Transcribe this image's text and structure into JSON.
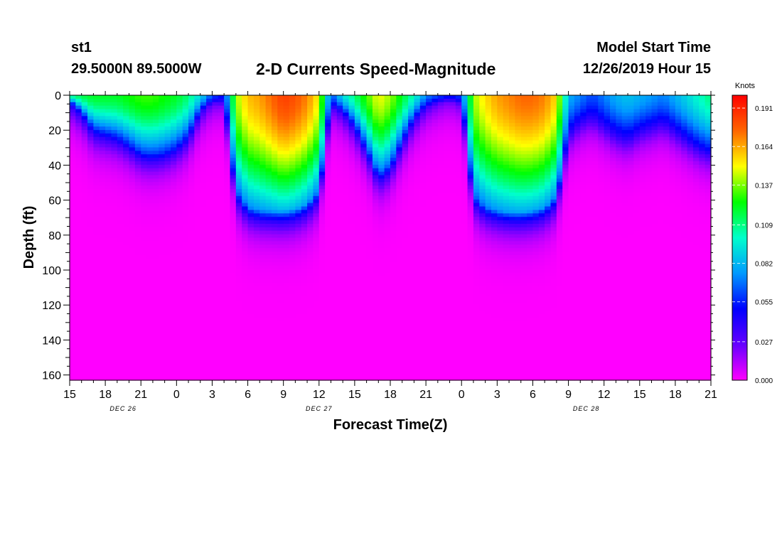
{
  "header": {
    "station": "st1",
    "coordinates": "29.5000N 89.5000W",
    "title": "2-D Currents Speed-Magnitude",
    "model_start_label": "Model Start Time",
    "model_start_value": "12/26/2019 Hour 15"
  },
  "colorbar": {
    "unit": "Knots",
    "ticks": [
      "0.000",
      "0.027",
      "0.055",
      "0.082",
      "0.109",
      "0.137",
      "0.164",
      "0.191"
    ],
    "colors": [
      "#ff00ff",
      "#6600ff",
      "#0000ff",
      "#0099ff",
      "#00ffcc",
      "#00ff00",
      "#ffff00",
      "#ff6600",
      "#ff0000"
    ]
  },
  "chart_data": {
    "type": "heatmap",
    "title": "2-D Currents Speed-Magnitude",
    "xlabel": "Forecast Time(Z)",
    "ylabel": "Depth (ft)",
    "x_tick_labels": [
      "15",
      "18",
      "21",
      "0",
      "3",
      "6",
      "9",
      "12",
      "15",
      "18",
      "21",
      "0",
      "3",
      "6",
      "9",
      "12",
      "15",
      "18",
      "21"
    ],
    "x_range_hours": [
      0,
      54
    ],
    "date_labels": [
      {
        "text": "DEC 26",
        "hour": 4.5
      },
      {
        "text": "DEC 27",
        "hour": 21
      },
      {
        "text": "DEC 28",
        "hour": 43.5
      }
    ],
    "y_ticks": [
      0,
      20,
      40,
      60,
      80,
      100,
      120,
      140,
      160
    ],
    "ylim": [
      0,
      163
    ],
    "colorbar_range": [
      0,
      0.2
    ],
    "units": "Knots",
    "profiles": [
      {
        "hour": 0,
        "surface": 0.105,
        "thickness": 4
      },
      {
        "hour": 1,
        "surface": 0.115,
        "thickness": 10
      },
      {
        "hour": 2,
        "surface": 0.12,
        "thickness": 20
      },
      {
        "hour": 3,
        "surface": 0.12,
        "thickness": 22
      },
      {
        "hour": 4,
        "surface": 0.12,
        "thickness": 24
      },
      {
        "hour": 5,
        "surface": 0.125,
        "thickness": 28
      },
      {
        "hour": 6,
        "surface": 0.13,
        "thickness": 33
      },
      {
        "hour": 7,
        "surface": 0.13,
        "thickness": 34
      },
      {
        "hour": 8,
        "surface": 0.125,
        "thickness": 33
      },
      {
        "hour": 9,
        "surface": 0.12,
        "thickness": 30
      },
      {
        "hour": 10,
        "surface": 0.11,
        "thickness": 24
      },
      {
        "hour": 11,
        "surface": 0.09,
        "thickness": 10
      },
      {
        "hour": 12,
        "surface": 0.06,
        "thickness": 5
      },
      {
        "hour": 13,
        "surface": 0.05,
        "thickness": 6
      },
      {
        "hour": 14,
        "surface": 0.14,
        "thickness": 55
      },
      {
        "hour": 15,
        "surface": 0.16,
        "thickness": 64
      },
      {
        "hour": 16,
        "surface": 0.165,
        "thickness": 66
      },
      {
        "hour": 17,
        "surface": 0.175,
        "thickness": 66
      },
      {
        "hour": 18,
        "surface": 0.185,
        "thickness": 66
      },
      {
        "hour": 19,
        "surface": 0.18,
        "thickness": 65
      },
      {
        "hour": 20,
        "surface": 0.17,
        "thickness": 62
      },
      {
        "hour": 21,
        "surface": 0.15,
        "thickness": 55
      },
      {
        "hour": 22,
        "surface": 0.06,
        "thickness": 8
      },
      {
        "hour": 23,
        "surface": 0.09,
        "thickness": 10
      },
      {
        "hour": 24,
        "surface": 0.11,
        "thickness": 18
      },
      {
        "hour": 25,
        "surface": 0.13,
        "thickness": 30
      },
      {
        "hour": 26,
        "surface": 0.15,
        "thickness": 45
      },
      {
        "hour": 27,
        "surface": 0.14,
        "thickness": 40
      },
      {
        "hour": 28,
        "surface": 0.12,
        "thickness": 26
      },
      {
        "hour": 29,
        "surface": 0.1,
        "thickness": 14
      },
      {
        "hour": 30,
        "surface": 0.07,
        "thickness": 8
      },
      {
        "hour": 31,
        "surface": 0.06,
        "thickness": 5
      },
      {
        "hour": 32,
        "surface": 0.05,
        "thickness": 4
      },
      {
        "hour": 33,
        "surface": 0.06,
        "thickness": 6
      },
      {
        "hour": 34,
        "surface": 0.14,
        "thickness": 58
      },
      {
        "hour": 35,
        "surface": 0.155,
        "thickness": 64
      },
      {
        "hour": 36,
        "surface": 0.165,
        "thickness": 66
      },
      {
        "hour": 37,
        "surface": 0.17,
        "thickness": 67
      },
      {
        "hour": 38,
        "surface": 0.175,
        "thickness": 67
      },
      {
        "hour": 39,
        "surface": 0.175,
        "thickness": 66
      },
      {
        "hour": 40,
        "surface": 0.17,
        "thickness": 64
      },
      {
        "hour": 41,
        "surface": 0.155,
        "thickness": 58
      },
      {
        "hour": 42,
        "surface": 0.08,
        "thickness": 24
      },
      {
        "hour": 43,
        "surface": 0.07,
        "thickness": 18
      },
      {
        "hour": 44,
        "surface": 0.06,
        "thickness": 16
      },
      {
        "hour": 45,
        "surface": 0.07,
        "thickness": 20
      },
      {
        "hour": 46,
        "surface": 0.08,
        "thickness": 24
      },
      {
        "hour": 47,
        "surface": 0.085,
        "thickness": 26
      },
      {
        "hour": 48,
        "surface": 0.08,
        "thickness": 22
      },
      {
        "hour": 49,
        "surface": 0.075,
        "thickness": 20
      },
      {
        "hour": 50,
        "surface": 0.07,
        "thickness": 18
      },
      {
        "hour": 51,
        "surface": 0.08,
        "thickness": 22
      },
      {
        "hour": 52,
        "surface": 0.09,
        "thickness": 26
      },
      {
        "hour": 53,
        "surface": 0.1,
        "thickness": 30
      },
      {
        "hour": 54,
        "surface": 0.11,
        "thickness": 32
      }
    ]
  }
}
